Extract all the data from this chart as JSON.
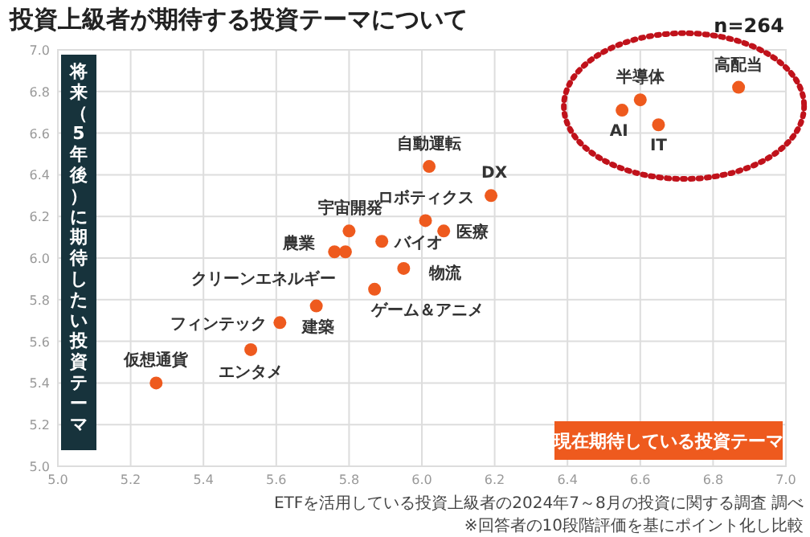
{
  "chart_data": {
    "type": "scatter",
    "title": "投資上級者が期待する投資テーマについて",
    "xlabel": "現在期待している投資テーマ",
    "ylabel": "将来（5年後）に期待したい投資テーマ",
    "x": [
      6.87,
      6.6,
      6.55,
      6.65,
      6.02,
      6.19,
      6.01,
      6.06,
      5.8,
      5.89,
      5.76,
      5.79,
      5.95,
      5.87,
      5.71,
      5.61,
      5.53,
      5.27
    ],
    "series": [
      {
        "color": "#ee5a1e",
        "values": [
          6.82,
          6.76,
          6.71,
          6.64,
          6.44,
          6.3,
          6.18,
          6.13,
          6.13,
          6.08,
          6.03,
          6.03,
          5.95,
          5.85,
          5.77,
          5.69,
          5.56,
          5.4
        ]
      }
    ],
    "xlim": [
      5.0,
      7.0
    ],
    "ylim": [
      5.0,
      7.0
    ],
    "xticks": [
      {
        "value": 5.0,
        "label": "5.0"
      },
      5.2,
      5.4,
      5.6,
      5.8,
      {
        "value": 6.0,
        "label": "6.0"
      },
      6.2,
      6.4,
      6.6,
      6.8,
      {
        "value": 7.0,
        "label": "7.0"
      }
    ],
    "yticks": [
      {
        "value": 5.0,
        "label": "5.0"
      },
      5.2,
      5.4,
      5.6,
      5.8,
      {
        "value": 6.0,
        "label": "6.0"
      },
      6.2,
      6.4,
      6.6,
      6.8,
      {
        "value": 7.0,
        "label": "7.0"
      }
    ],
    "grid": true,
    "marker": "circle",
    "annotations": [
      "n=264",
      {
        "text": "高配当",
        "x": 6.87,
        "y": 6.82
      },
      {
        "text": "半導体",
        "x": 6.6,
        "y": 6.76
      },
      {
        "text": "AI",
        "x": 6.55,
        "y": 6.71
      },
      {
        "text": "IT",
        "x": 6.65,
        "y": 6.64
      },
      {
        "text": "自動運転",
        "x": 6.02,
        "y": 6.44
      },
      {
        "text": "DX",
        "x": 6.19,
        "y": 6.3
      },
      {
        "text": "ロボティクス",
        "x": 6.01,
        "y": 6.18
      },
      {
        "text": "医療",
        "x": 6.06,
        "y": 6.13
      },
      {
        "text": "宇宙開発",
        "x": 5.8,
        "y": 6.13
      },
      {
        "text": "バイオ",
        "x": 5.89,
        "y": 6.08
      },
      {
        "text": "農業",
        "x": 5.76,
        "y": 6.03
      },
      {
        "text": "クリーンエネルギー",
        "x": 5.79,
        "y": 6.03
      },
      {
        "text": "物流",
        "x": 5.95,
        "y": 5.95
      },
      {
        "text": "ゲーム＆アニメ",
        "x": 5.87,
        "y": 5.85
      },
      {
        "text": "建築",
        "x": 5.71,
        "y": 5.77
      },
      {
        "text": "フィンテック",
        "x": 5.61,
        "y": 5.69
      },
      {
        "text": "エンタメ",
        "x": 5.53,
        "y": 5.56
      },
      {
        "text": "仮想通貨",
        "x": 5.27,
        "y": 5.4
      },
      "ETFを活用している投資上級者の2024年7～8月の投資に関する調査 調べ",
      "※回答者の10段階評価を基にポイント化し比較"
    ]
  }
}
